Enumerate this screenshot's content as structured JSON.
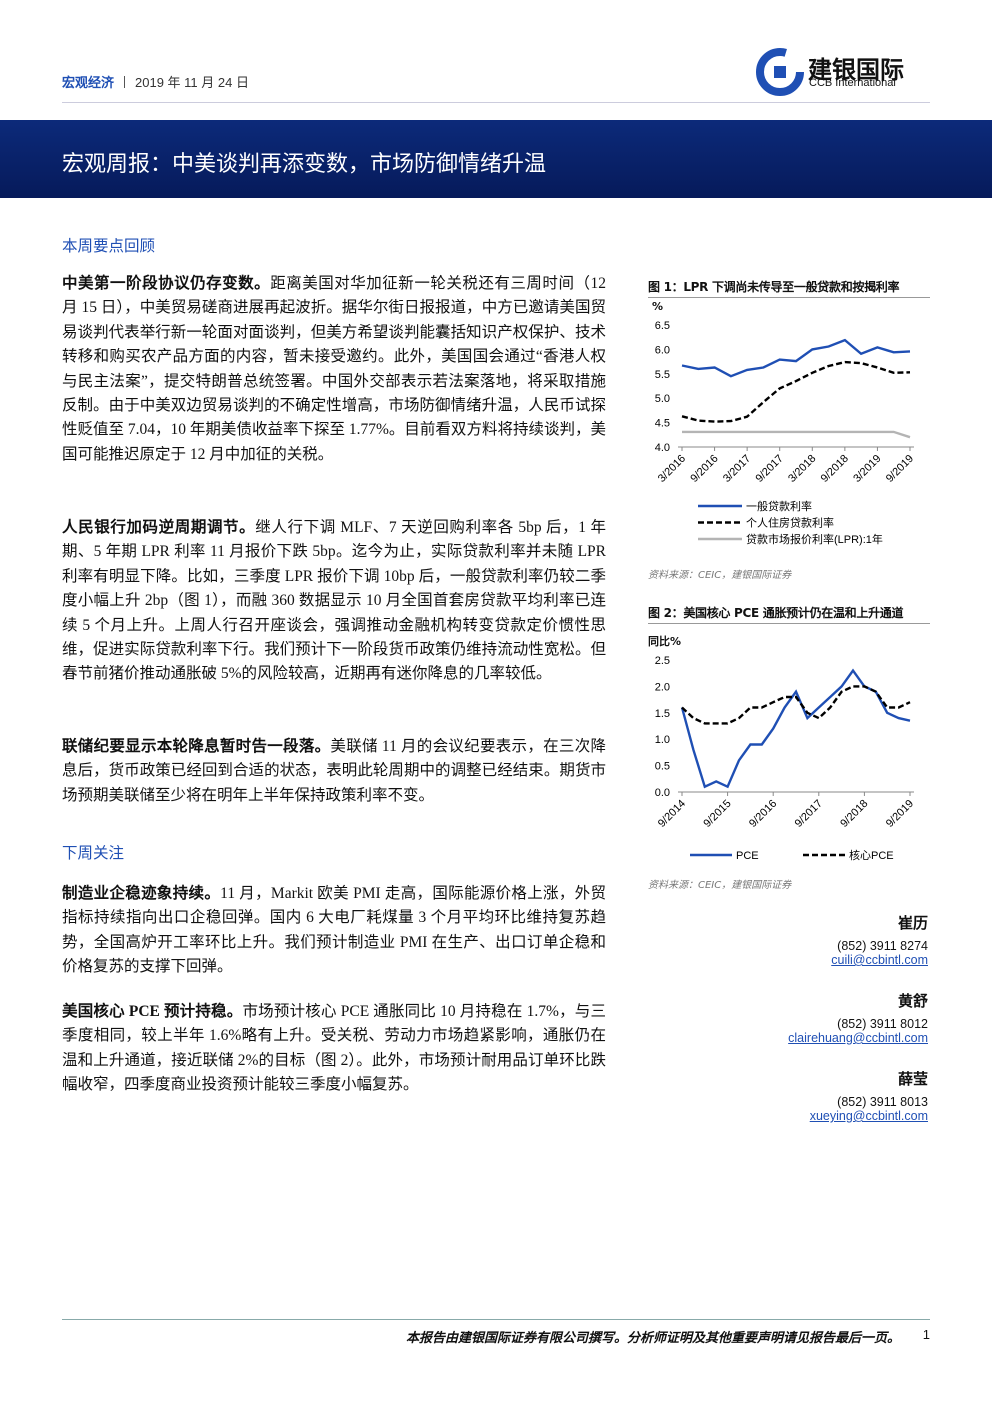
{
  "header": {
    "section": "宏观经济",
    "date": "2019 年 11 月 24 日",
    "logo_cn": "建银国际",
    "logo_en": "CCB International"
  },
  "banner": {
    "title": "宏观周报：中美谈判再添变数，市场防御情绪升温"
  },
  "sections": [
    {
      "heading": "本周要点回顾",
      "paragraphs": [
        {
          "lead": "中美第一阶段协议仍存变数。",
          "text": "距离美国对华加征新一轮关税还有三周时间（12 月 15 日），中美贸易磋商进展再起波折。据华尔街日报报道，中方已邀请美国贸易谈判代表举行新一轮面对面谈判，但美方希望谈判能囊括知识产权保护、技术转移和购买农产品方面的内容，暂未接受邀约。此外，美国国会通过“香港人权与民主法案”，提交特朗普总统签署。中国外交部表示若法案落地，将采取措施反制。由于中美双边贸易谈判的不确定性增高，市场防御情绪升温，人民币试探性贬值至 7.04，10 年期美债收益率下探至 1.77%。目前看双方料将持续谈判，美国可能推迟原定于 12 月中加征的关税。"
        },
        {
          "lead": "人民银行加码逆周期调节。",
          "text": "继人行下调 MLF、7 天逆回购利率各 5bp 后，1 年期、5 年期 LPR 利率 11 月报价下跌 5bp。迄今为止，实际贷款利率并未随 LPR 利率有明显下降。比如，三季度 LPR 报价下调 10bp 后，一般贷款利率仍较二季度小幅上升 2bp（图 1），而融 360 数据显示 10 月全国首套房贷款平均利率已连续 5 个月上升。上周人行召开座谈会，强调推动金融机构转变贷款定价惯性思维，促进实际贷款利率下行。我们预计下一阶段货币政策仍维持流动性宽松。但春节前猪价推动通胀破 5%的风险较高，近期再有迷你降息的几率较低。"
        },
        {
          "lead": "联储纪要显示本轮降息暂时告一段落。",
          "text": "美联储 11 月的会议纪要表示，在三次降息后，货币政策已经回到合适的状态，表明此轮周期中的调整已经结束。期货市场预期美联储至少将在明年上半年保持政策利率不变。"
        }
      ]
    },
    {
      "heading": "下周关注",
      "paragraphs": [
        {
          "lead": "制造业企稳迹象持续。",
          "text": "11 月，Markit 欧美 PMI 走高，国际能源价格上涨，外贸指标持续指向出口企稳回弹。国内 6 大电厂耗煤量 3 个月平均环比维持复苏趋势，全国高炉开工率环比上升。我们预计制造业 PMI 在生产、出口订单企稳和价格复苏的支撑下回弹。"
        },
        {
          "lead": "美国核心 PCE 预计持稳。",
          "text": "市场预计核心 PCE 通胀同比 10 月持稳在 1.7%，与三季度相同，较上半年 1.6%略有上升。受关税、劳动力市场趋紧影响，通胀仍在温和上升通道，接近联储 2%的目标（图 2）。此外，市场预计耐用品订单环比跌幅收窄，四季度商业投资预计能较三季度小幅复苏。"
        }
      ]
    }
  ],
  "chart_data": [
    {
      "type": "line",
      "title": "图 1：LPR 下调尚未传导至一般贷款和按揭利率",
      "y_label": "%",
      "source": "资料来源：CEIC，建银国际证券",
      "categories": [
        "3/2016",
        null,
        "9/2016",
        null,
        "3/2017",
        null,
        "9/2017",
        null,
        "3/2018",
        null,
        "9/2018",
        null,
        "3/2019",
        null,
        "9/2019"
      ],
      "series": [
        {
          "name": "一般贷款利率",
          "color": "#1f4fb4",
          "style": "solid",
          "values": [
            5.67,
            5.6,
            5.63,
            5.45,
            5.58,
            5.63,
            5.79,
            5.76,
            6.0,
            6.06,
            6.19,
            5.91,
            6.04,
            5.94,
            5.96
          ]
        },
        {
          "name": "个人住房贷款利率",
          "color": "#000000",
          "style": "dashed",
          "values": [
            4.63,
            4.54,
            4.52,
            4.53,
            4.62,
            4.92,
            5.2,
            5.35,
            5.52,
            5.66,
            5.74,
            5.72,
            5.63,
            5.52,
            5.53
          ]
        },
        {
          "name": "贷款市场报价利率(LPR):1年",
          "color": "#b4b4b4",
          "style": "solid",
          "values": [
            4.31,
            4.31,
            4.31,
            4.31,
            4.31,
            4.31,
            4.31,
            4.31,
            4.31,
            4.31,
            4.31,
            4.31,
            4.31,
            4.31,
            4.2
          ]
        }
      ],
      "ylim": [
        4,
        6.5
      ],
      "yticks": [
        {
          "value": 4,
          "label": "4.0"
        },
        4.5,
        {
          "value": 5,
          "label": "5.0"
        },
        5.5,
        {
          "value": 6,
          "label": "6.0"
        },
        6.5
      ],
      "grid": false,
      "legend": "bottom"
    },
    {
      "type": "line",
      "title": "图 2：美国核心 PCE 通胀预计仍在温和上升通道",
      "y_label": "同比%",
      "source": "资料来源：CEIC，建银国际证券",
      "categories": [
        "9/2014",
        null,
        null,
        null,
        "9/2015",
        null,
        null,
        null,
        "9/2016",
        null,
        null,
        null,
        "9/2017",
        null,
        null,
        null,
        "9/2018",
        null,
        null,
        null,
        "9/2019"
      ],
      "series": [
        {
          "name": "PCE",
          "color": "#1f4fb4",
          "style": "solid",
          "values": [
            1.6,
            0.8,
            0.1,
            0.2,
            0.1,
            0.6,
            0.9,
            0.9,
            1.2,
            1.6,
            1.9,
            1.4,
            1.6,
            1.8,
            2.0,
            2.3,
            2.0,
            1.9,
            1.5,
            1.4,
            1.35
          ]
        },
        {
          "name": "核心PCE",
          "color": "#000000",
          "style": "dashed",
          "values": [
            1.6,
            1.4,
            1.3,
            1.3,
            1.3,
            1.4,
            1.6,
            1.6,
            1.7,
            1.8,
            1.8,
            1.5,
            1.4,
            1.6,
            1.9,
            2.0,
            2.0,
            1.9,
            1.6,
            1.6,
            1.7
          ]
        }
      ],
      "ylim": [
        0,
        2.5
      ],
      "yticks": [
        {
          "value": 0,
          "label": "0.0"
        },
        0.5,
        {
          "value": 1,
          "label": "1.0"
        },
        1.5,
        {
          "value": 2,
          "label": "2.0"
        },
        2.5
      ],
      "grid": false,
      "legend": "bottom"
    }
  ],
  "contacts": [
    {
      "name": "崔历",
      "phone": "(852) 3911 8274",
      "email": "cuili@ccbintl.com"
    },
    {
      "name": "黄舒",
      "phone": "(852) 3911 8012",
      "email": "clairehuang@ccbintl.com"
    },
    {
      "name": "薛莹",
      "phone": "(852) 3911 8013",
      "email": "xueying@ccbintl.com"
    }
  ],
  "footer": {
    "disclaimer": "本报告由建银国际证券有限公司撰写。分析师证明及其他重要声明请见报告最后一页。",
    "page": "1"
  }
}
